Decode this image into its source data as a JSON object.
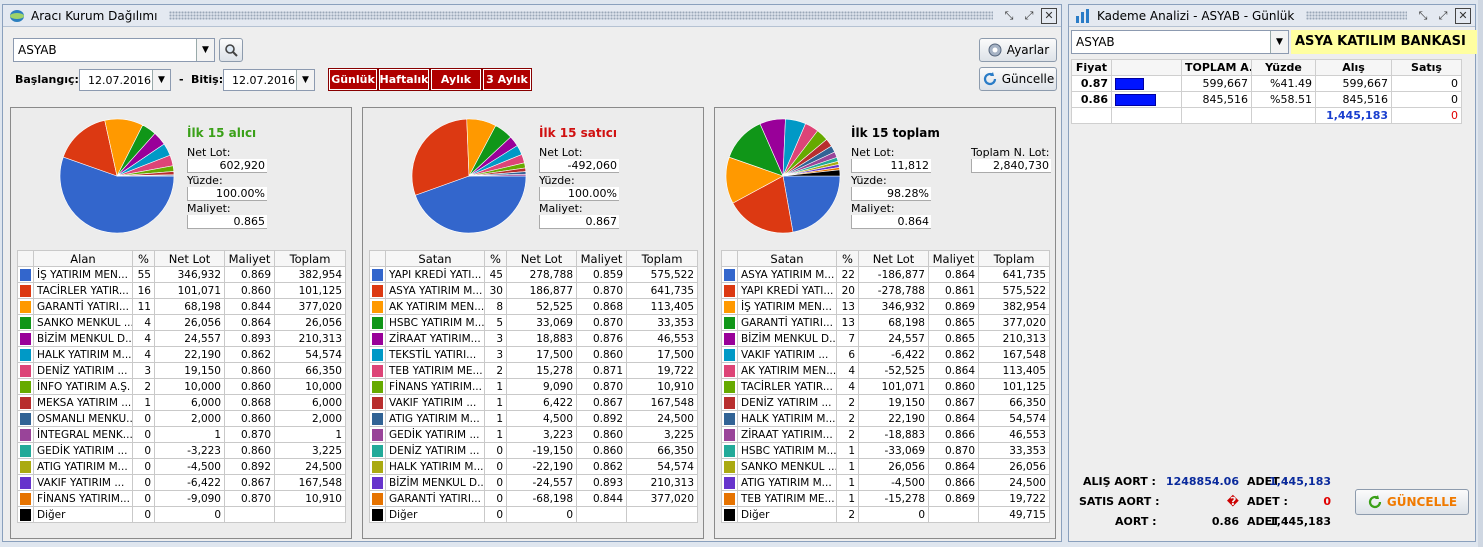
{
  "left_window": {
    "title": "Aracı Kurum Dağılımı",
    "symbol": "ASYAB",
    "start_label": "Başlangıç:",
    "start_date": "12.07.2016",
    "end_label": "Bitiş:",
    "end_date": "12.07.2016",
    "periods": [
      "Günlük",
      "Haftalık",
      "Aylık",
      "3 Aylık"
    ],
    "settings_button": "Ayarlar",
    "refresh_button": "Güncelle"
  },
  "panels": [
    {
      "title": "İlk 15 alıcı",
      "title_color": "#3aa018",
      "fields": [
        {
          "label": "Net Lot:",
          "value": "602,920"
        },
        {
          "label": "Yüzde:",
          "value": "100.00%"
        },
        {
          "label": "Maliyet:",
          "value": "0.865"
        }
      ],
      "columns": [
        "Alan",
        "%",
        "Net Lot",
        "Maliyet",
        "Toplam"
      ],
      "rows": [
        {
          "color": "#3366cc",
          "name": "İŞ YATIRIM MEN...",
          "pct": "55",
          "net": "346,932",
          "cost": "0.869",
          "total": "382,954"
        },
        {
          "color": "#dc3912",
          "name": "TACİRLER YATIR...",
          "pct": "16",
          "net": "101,071",
          "cost": "0.860",
          "total": "101,125"
        },
        {
          "color": "#ff9900",
          "name": "GARANTİ YATIRI...",
          "pct": "11",
          "net": "68,198",
          "cost": "0.844",
          "total": "377,020"
        },
        {
          "color": "#109618",
          "name": "SANKO MENKUL ...",
          "pct": "4",
          "net": "26,056",
          "cost": "0.864",
          "total": "26,056"
        },
        {
          "color": "#990099",
          "name": "BİZİM MENKUL D...",
          "pct": "4",
          "net": "24,557",
          "cost": "0.893",
          "total": "210,313"
        },
        {
          "color": "#0099c6",
          "name": "HALK YATIRIM M...",
          "pct": "4",
          "net": "22,190",
          "cost": "0.862",
          "total": "54,574"
        },
        {
          "color": "#dd4477",
          "name": "DENİZ YATIRIM ...",
          "pct": "3",
          "net": "19,150",
          "cost": "0.860",
          "total": "66,350"
        },
        {
          "color": "#66aa00",
          "name": "İNFO YATIRIM A.Ş.",
          "pct": "2",
          "net": "10,000",
          "cost": "0.860",
          "total": "10,000"
        },
        {
          "color": "#b82e2e",
          "name": "MEKSA YATIRIM ...",
          "pct": "1",
          "net": "6,000",
          "cost": "0.868",
          "total": "6,000"
        },
        {
          "color": "#316395",
          "name": "OSMANLI MENKU...",
          "pct": "0",
          "net": "2,000",
          "cost": "0.860",
          "total": "2,000"
        },
        {
          "color": "#994499",
          "name": "İNTEGRAL MENK...",
          "pct": "0",
          "net": "1",
          "cost": "0.870",
          "total": "1"
        },
        {
          "color": "#22aa99",
          "name": "GEDİK YATIRIM ...",
          "pct": "0",
          "net": "-3,223",
          "cost": "0.860",
          "total": "3,225"
        },
        {
          "color": "#aaaa11",
          "name": "ATIG YATIRIM M...",
          "pct": "0",
          "net": "-4,500",
          "cost": "0.892",
          "total": "24,500"
        },
        {
          "color": "#6633cc",
          "name": "VAKIF YATIRIM ...",
          "pct": "0",
          "net": "-6,422",
          "cost": "0.867",
          "total": "167,548"
        },
        {
          "color": "#e67300",
          "name": "FİNANS YATIRIM...",
          "pct": "0",
          "net": "-9,090",
          "cost": "0.870",
          "total": "10,910"
        },
        {
          "color": "#000000",
          "name": "Diğer",
          "pct": "0",
          "net": "0",
          "cost": "",
          "total": ""
        }
      ]
    },
    {
      "title": "İlk 15 satıcı",
      "title_color": "#d01010",
      "fields": [
        {
          "label": "Net Lot:",
          "value": "-492,060"
        },
        {
          "label": "Yüzde:",
          "value": "100.00%"
        },
        {
          "label": "Maliyet:",
          "value": "0.867"
        }
      ],
      "columns": [
        "Satan",
        "%",
        "Net Lot",
        "Maliyet",
        "Toplam"
      ],
      "rows": [
        {
          "color": "#3366cc",
          "name": "YAPI KREDİ YATI...",
          "pct": "45",
          "net": "278,788",
          "cost": "0.859",
          "total": "575,522"
        },
        {
          "color": "#dc3912",
          "name": "ASYA YATIRIM M...",
          "pct": "30",
          "net": "186,877",
          "cost": "0.870",
          "total": "641,735"
        },
        {
          "color": "#ff9900",
          "name": "AK YATIRIM MEN...",
          "pct": "8",
          "net": "52,525",
          "cost": "0.868",
          "total": "113,405"
        },
        {
          "color": "#109618",
          "name": "HSBC YATIRIM M...",
          "pct": "5",
          "net": "33,069",
          "cost": "0.870",
          "total": "33,353"
        },
        {
          "color": "#990099",
          "name": "ZİRAAT YATIRIM...",
          "pct": "3",
          "net": "18,883",
          "cost": "0.876",
          "total": "46,553"
        },
        {
          "color": "#0099c6",
          "name": "TEKSTİL YATIRI...",
          "pct": "3",
          "net": "17,500",
          "cost": "0.860",
          "total": "17,500"
        },
        {
          "color": "#dd4477",
          "name": "TEB YATIRIM ME...",
          "pct": "2",
          "net": "15,278",
          "cost": "0.871",
          "total": "19,722"
        },
        {
          "color": "#66aa00",
          "name": "FİNANS YATIRIM...",
          "pct": "1",
          "net": "9,090",
          "cost": "0.870",
          "total": "10,910"
        },
        {
          "color": "#b82e2e",
          "name": "VAKIF YATIRIM ...",
          "pct": "1",
          "net": "6,422",
          "cost": "0.867",
          "total": "167,548"
        },
        {
          "color": "#316395",
          "name": "ATIG YATIRIM M...",
          "pct": "1",
          "net": "4,500",
          "cost": "0.892",
          "total": "24,500"
        },
        {
          "color": "#994499",
          "name": "GEDİK YATIRIM ...",
          "pct": "1",
          "net": "3,223",
          "cost": "0.860",
          "total": "3,225"
        },
        {
          "color": "#22aa99",
          "name": "DENİZ YATIRIM ...",
          "pct": "0",
          "net": "-19,150",
          "cost": "0.860",
          "total": "66,350"
        },
        {
          "color": "#aaaa11",
          "name": "HALK YATIRIM M...",
          "pct": "0",
          "net": "-22,190",
          "cost": "0.862",
          "total": "54,574"
        },
        {
          "color": "#6633cc",
          "name": "BİZİM MENKUL D...",
          "pct": "0",
          "net": "-24,557",
          "cost": "0.893",
          "total": "210,313"
        },
        {
          "color": "#e67300",
          "name": "GARANTİ YATIRI...",
          "pct": "0",
          "net": "-68,198",
          "cost": "0.844",
          "total": "377,020"
        },
        {
          "color": "#000000",
          "name": "Diğer",
          "pct": "0",
          "net": "0",
          "cost": "",
          "total": ""
        }
      ]
    },
    {
      "title": "İlk 15 toplam",
      "title_color": "#000000",
      "fields": [
        {
          "label": "Net Lot:",
          "value": "11,812"
        },
        {
          "label": "Yüzde:",
          "value": "98.28%"
        },
        {
          "label": "Maliyet:",
          "value": "0.864"
        }
      ],
      "extra_field": {
        "label": "Toplam N. Lot:",
        "value": "2,840,730"
      },
      "columns": [
        "Satan",
        "%",
        "Net Lot",
        "Maliyet",
        "Toplam"
      ],
      "rows": [
        {
          "color": "#3366cc",
          "name": "ASYA YATIRIM M...",
          "pct": "22",
          "net": "-186,877",
          "cost": "0.864",
          "total": "641,735"
        },
        {
          "color": "#dc3912",
          "name": "YAPI KREDİ YATI...",
          "pct": "20",
          "net": "-278,788",
          "cost": "0.861",
          "total": "575,522"
        },
        {
          "color": "#ff9900",
          "name": "İŞ YATIRIM MEN...",
          "pct": "13",
          "net": "346,932",
          "cost": "0.869",
          "total": "382,954"
        },
        {
          "color": "#109618",
          "name": "GARANTİ YATIRI...",
          "pct": "13",
          "net": "68,198",
          "cost": "0.865",
          "total": "377,020"
        },
        {
          "color": "#990099",
          "name": "BİZİM MENKUL D...",
          "pct": "7",
          "net": "24,557",
          "cost": "0.865",
          "total": "210,313"
        },
        {
          "color": "#0099c6",
          "name": "VAKIF YATIRIM ...",
          "pct": "6",
          "net": "-6,422",
          "cost": "0.862",
          "total": "167,548"
        },
        {
          "color": "#dd4477",
          "name": "AK YATIRIM MEN...",
          "pct": "4",
          "net": "-52,525",
          "cost": "0.864",
          "total": "113,405"
        },
        {
          "color": "#66aa00",
          "name": "TACİRLER YATIR...",
          "pct": "4",
          "net": "101,071",
          "cost": "0.860",
          "total": "101,125"
        },
        {
          "color": "#b82e2e",
          "name": "DENİZ YATIRIM ...",
          "pct": "2",
          "net": "19,150",
          "cost": "0.867",
          "total": "66,350"
        },
        {
          "color": "#316395",
          "name": "HALK YATIRIM M...",
          "pct": "2",
          "net": "22,190",
          "cost": "0.864",
          "total": "54,574"
        },
        {
          "color": "#994499",
          "name": "ZİRAAT YATIRIM...",
          "pct": "2",
          "net": "-18,883",
          "cost": "0.866",
          "total": "46,553"
        },
        {
          "color": "#22aa99",
          "name": "HSBC YATIRIM M...",
          "pct": "1",
          "net": "-33,069",
          "cost": "0.870",
          "total": "33,353"
        },
        {
          "color": "#aaaa11",
          "name": "SANKO MENKUL ...",
          "pct": "1",
          "net": "26,056",
          "cost": "0.864",
          "total": "26,056"
        },
        {
          "color": "#6633cc",
          "name": "ATIG YATIRIM M...",
          "pct": "1",
          "net": "-4,500",
          "cost": "0.866",
          "total": "24,500"
        },
        {
          "color": "#e67300",
          "name": "TEB YATIRIM ME...",
          "pct": "1",
          "net": "-15,278",
          "cost": "0.869",
          "total": "19,722"
        },
        {
          "color": "#000000",
          "name": "Diğer",
          "pct": "2",
          "net": "0",
          "cost": "",
          "total": "49,715"
        }
      ]
    }
  ],
  "right_window": {
    "title": "Kademe Analizi - ASYAB - Günlük",
    "symbol": "ASYAB",
    "company_name": "ASYA KATILIM BANKASI",
    "columns": [
      "Fiyat",
      "",
      "TOPLAM A...",
      "Yüzde",
      "Alış",
      "Satış"
    ],
    "rows": [
      {
        "price": "0.87",
        "bar_pct": 41.49,
        "total": "599,667",
        "pct": "%41.49",
        "buy": "599,667",
        "sell": "0"
      },
      {
        "price": "0.86",
        "bar_pct": 58.51,
        "total": "845,516",
        "pct": "%58.51",
        "buy": "845,516",
        "sell": "0"
      }
    ],
    "totals": {
      "buy": "1,445,183",
      "sell": "0"
    },
    "footer": {
      "buy_aort_label": "ALIŞ AORT :",
      "buy_aort_value": "1248854.06",
      "buy_adet_label": "ADET :",
      "buy_adet_value": "1,445,183",
      "sell_aort_label": "SATIS AORT :",
      "sell_aort_value": "�",
      "sell_adet_label": "ADET :",
      "sell_adet_value": "0",
      "aort_label": "AORT :",
      "aort_value": "0.86",
      "aort_adet_label": "ADET :",
      "aort_adet_value": "1,445,183"
    },
    "refresh_button": "GÜNCELLE"
  },
  "chart_data": [
    {
      "type": "pie",
      "title": "İlk 15 alıcı",
      "categories": [
        "İŞ YATIRIM MEN...",
        "TACİRLER YATIR...",
        "GARANTİ YATIRI...",
        "SANKO MENKUL ...",
        "BİZİM MENKUL D...",
        "HALK YATIRIM M...",
        "DENİZ YATIRIM ...",
        "İNFO YATIRIM A.Ş.",
        "MEKSA YATIRIM ...",
        "OSMANLI MENKU...",
        "İNTEGRAL MENK..."
      ],
      "values": [
        346932,
        101071,
        68198,
        26056,
        24557,
        22190,
        19150,
        10000,
        6000,
        2000,
        1
      ]
    },
    {
      "type": "pie",
      "title": "İlk 15 satıcı",
      "categories": [
        "YAPI KREDİ YATI...",
        "ASYA YATIRIM M...",
        "AK YATIRIM MEN...",
        "HSBC YATIRIM M...",
        "ZİRAAT YATIRIM...",
        "TEKSTİL YATIRI...",
        "TEB YATIRIM ME...",
        "FİNANS YATIRIM...",
        "VAKIF YATIRIM ...",
        "ATIG YATIRIM M...",
        "GEDİK YATIRIM ..."
      ],
      "values": [
        278788,
        186877,
        52525,
        33069,
        18883,
        17500,
        15278,
        9090,
        6422,
        4500,
        3223
      ]
    },
    {
      "type": "pie",
      "title": "İlk 15 toplam",
      "categories": [
        "ASYA YATIRIM M...",
        "YAPI KREDİ YATI...",
        "İŞ YATIRIM MEN...",
        "GARANTİ YATIRI...",
        "BİZİM MENKUL D...",
        "VAKIF YATIRIM ...",
        "AK YATIRIM MEN...",
        "TACİRLER YATIR...",
        "DENİZ YATIRIM ...",
        "HALK YATIRIM M...",
        "ZİRAAT YATIRIM...",
        "HSBC YATIRIM M...",
        "SANKO MENKUL ...",
        "ATIG YATIRIM M...",
        "TEB YATIRIM ME...",
        "Diğer"
      ],
      "values": [
        641735,
        575522,
        382954,
        377020,
        210313,
        167548,
        113405,
        101125,
        66350,
        54574,
        46553,
        33353,
        26056,
        24500,
        19722,
        49715
      ]
    }
  ]
}
